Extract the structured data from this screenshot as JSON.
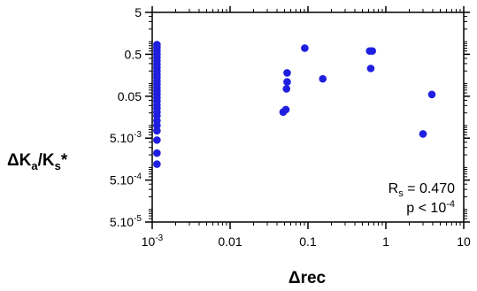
{
  "chart_data": {
    "type": "scatter",
    "x_scale": "log",
    "y_scale": "log",
    "xlim": [
      0.001,
      10
    ],
    "ylim": [
      5e-05,
      5
    ],
    "grid": false,
    "marker_color": "#1f1fe0",
    "xlabel": {
      "main": "Δrec"
    },
    "ylabel": {
      "a": "ΔK",
      "b": "a",
      "c": "/K",
      "d": "s",
      "e": "*"
    },
    "x_ticks": [
      {
        "value": 0.001,
        "base": "10",
        "exp": "-3"
      },
      {
        "value": 0.01,
        "label": "0.01"
      },
      {
        "value": 0.1,
        "label": "0.1"
      },
      {
        "value": 1,
        "label": "1"
      },
      {
        "value": 10,
        "label": "10"
      }
    ],
    "y_ticks": [
      {
        "value": 5,
        "label": "5"
      },
      {
        "value": 0.5,
        "label": "0.5"
      },
      {
        "value": 0.05,
        "label": "0.05"
      },
      {
        "value": 0.005,
        "base": "5.10",
        "exp": "-3"
      },
      {
        "value": 0.0005,
        "base": "5.10",
        "exp": "-4"
      },
      {
        "value": 5e-05,
        "base": "5.10",
        "exp": "-5"
      }
    ],
    "annotation": {
      "line1": {
        "a": "R",
        "b": "s",
        "c": " = 0.470"
      },
      "line2": {
        "a": "p < 10",
        "b": "-4"
      }
    },
    "points": [
      {
        "x": 0.00115,
        "y": 0.85
      },
      {
        "x": 0.00115,
        "y": 0.72
      },
      {
        "x": 0.00115,
        "y": 0.6
      },
      {
        "x": 0.00115,
        "y": 0.5
      },
      {
        "x": 0.00115,
        "y": 0.42
      },
      {
        "x": 0.00115,
        "y": 0.35
      },
      {
        "x": 0.00115,
        "y": 0.29
      },
      {
        "x": 0.00115,
        "y": 0.24
      },
      {
        "x": 0.00115,
        "y": 0.2
      },
      {
        "x": 0.00115,
        "y": 0.165
      },
      {
        "x": 0.00115,
        "y": 0.14
      },
      {
        "x": 0.00115,
        "y": 0.115
      },
      {
        "x": 0.00115,
        "y": 0.097
      },
      {
        "x": 0.00115,
        "y": 0.08
      },
      {
        "x": 0.00115,
        "y": 0.067
      },
      {
        "x": 0.00115,
        "y": 0.056
      },
      {
        "x": 0.00115,
        "y": 0.046
      },
      {
        "x": 0.00115,
        "y": 0.038
      },
      {
        "x": 0.00115,
        "y": 0.031
      },
      {
        "x": 0.00115,
        "y": 0.026
      },
      {
        "x": 0.00115,
        "y": 0.021
      },
      {
        "x": 0.00115,
        "y": 0.017
      },
      {
        "x": 0.00115,
        "y": 0.013
      },
      {
        "x": 0.00115,
        "y": 0.01
      },
      {
        "x": 0.00115,
        "y": 0.0075
      },
      {
        "x": 0.00115,
        "y": 0.0045
      },
      {
        "x": 0.00115,
        "y": 0.0022
      },
      {
        "x": 0.00115,
        "y": 0.0012
      },
      {
        "x": 0.048,
        "y": 0.021
      },
      {
        "x": 0.052,
        "y": 0.024
      },
      {
        "x": 0.053,
        "y": 0.075
      },
      {
        "x": 0.054,
        "y": 0.11
      },
      {
        "x": 0.054,
        "y": 0.18
      },
      {
        "x": 0.091,
        "y": 0.7
      },
      {
        "x": 0.155,
        "y": 0.13
      },
      {
        "x": 0.62,
        "y": 0.6
      },
      {
        "x": 0.67,
        "y": 0.6
      },
      {
        "x": 0.64,
        "y": 0.23
      },
      {
        "x": 3.0,
        "y": 0.0063
      },
      {
        "x": 3.9,
        "y": 0.055
      }
    ]
  }
}
